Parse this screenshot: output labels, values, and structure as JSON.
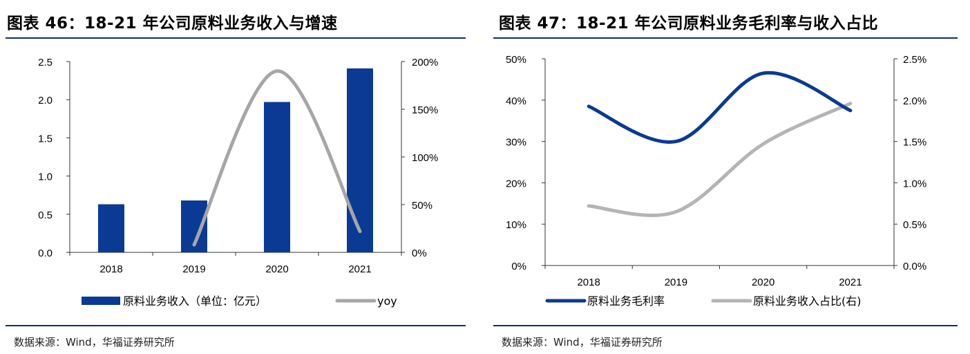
{
  "left_panel": {
    "title": "图表 46：18-21 年公司原料业务收入与增速",
    "source": "数据来源：Wind，华福证券研究所"
  },
  "right_panel": {
    "title": "图表 47：18-21 年公司原料业务毛利率与收入占比",
    "source": "数据来源：Wind，华福证券研究所"
  },
  "chart_data": [
    {
      "type": "bar",
      "categories": [
        "2018",
        "2019",
        "2020",
        "2021"
      ],
      "series": [
        {
          "name": "原料业务收入（单位：亿元）",
          "type": "bar",
          "axis": "left",
          "color": "#0a3a94",
          "values": [
            0.63,
            0.68,
            1.97,
            2.41
          ]
        },
        {
          "name": "yoy",
          "type": "line",
          "axis": "right",
          "color": "#a6a6a6",
          "values": [
            null,
            8,
            190,
            22
          ]
        }
      ],
      "y_left": {
        "ticks": [
          "0.0",
          "0.5",
          "1.0",
          "1.5",
          "2.0",
          "2.5"
        ],
        "min": 0,
        "max": 2.5
      },
      "y_right": {
        "ticks": [
          "0%",
          "50%",
          "100%",
          "150%",
          "200%"
        ],
        "min": 0,
        "max": 200
      },
      "grid": false,
      "legend_position": "bottom"
    },
    {
      "type": "line",
      "categories": [
        "2018",
        "2019",
        "2020",
        "2021"
      ],
      "series": [
        {
          "name": "原料业务毛利率",
          "axis": "left",
          "color": "#0a3a94",
          "values": [
            38.5,
            30,
            46.5,
            37.5
          ]
        },
        {
          "name": "原料业务收入占比(右)",
          "axis": "right",
          "color": "#b4b4b4",
          "values": [
            0.72,
            0.65,
            1.47,
            1.96
          ]
        }
      ],
      "y_left": {
        "ticks": [
          "0%",
          "10%",
          "20%",
          "30%",
          "40%",
          "50%"
        ],
        "min": 0,
        "max": 50
      },
      "y_right": {
        "ticks": [
          "0.0%",
          "0.5%",
          "1.0%",
          "1.5%",
          "2.0%",
          "2.5%"
        ],
        "min": 0,
        "max": 2.5
      },
      "grid": false,
      "legend_position": "bottom"
    }
  ]
}
